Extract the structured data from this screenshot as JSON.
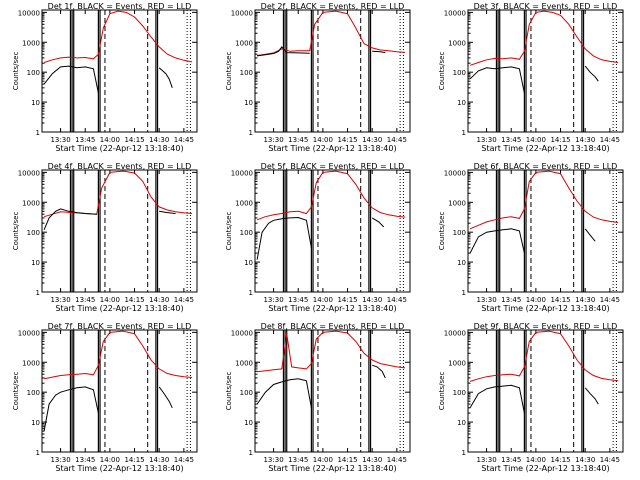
{
  "colors": {
    "events": "#000000",
    "lld": "#e00000",
    "axis": "#000000"
  },
  "chart_data": {
    "type": "line",
    "scale": "log",
    "ylabel": "Counts/sec",
    "xlabel": "Start Time (22-Apr-12 13:18:40)",
    "y_ticks": [
      "1",
      "10",
      "100",
      "1000",
      "10000"
    ],
    "x_ticks": [
      "13:30",
      "13:45",
      "14:00",
      "14:15",
      "14:30",
      "14:45"
    ],
    "x_tick_minutes": [
      30,
      45,
      60,
      75,
      90,
      105
    ],
    "xlim_minutes": [
      18.7,
      113
    ],
    "ylim": [
      1,
      12000
    ],
    "solid_markers_minutes": [
      36,
      37,
      38,
      53,
      54,
      88,
      89
    ],
    "dashed_markers_minutes": [
      57,
      83
    ],
    "dotted_markers_minutes": [
      107,
      109
    ],
    "panels": [
      {
        "title": "Det 1f, BLACK = Events, RED = LLD",
        "events": [
          [
            20,
            40
          ],
          [
            25,
            90
          ],
          [
            30,
            150
          ],
          [
            35,
            160
          ],
          [
            40,
            140
          ],
          [
            45,
            150
          ],
          [
            50,
            130
          ],
          [
            53,
            20
          ],
          [
            56,
            0
          ],
          [
            88,
            0
          ],
          [
            90,
            140
          ],
          [
            94,
            90
          ],
          [
            96,
            60
          ],
          [
            98,
            30
          ]
        ],
        "lld": [
          [
            20,
            210
          ],
          [
            25,
            260
          ],
          [
            30,
            300
          ],
          [
            35,
            320
          ],
          [
            40,
            300
          ],
          [
            45,
            310
          ],
          [
            50,
            280
          ],
          [
            53,
            400
          ],
          [
            56,
            3000
          ],
          [
            60,
            9000
          ],
          [
            65,
            11000
          ],
          [
            70,
            10000
          ],
          [
            75,
            7000
          ],
          [
            80,
            3500
          ],
          [
            85,
            1500
          ],
          [
            90,
            700
          ],
          [
            95,
            400
          ],
          [
            100,
            300
          ],
          [
            105,
            250
          ],
          [
            110,
            220
          ]
        ]
      },
      {
        "title": "Det 2f, BLACK = Events, RED = LLD",
        "events": [
          [
            20,
            350
          ],
          [
            25,
            380
          ],
          [
            30,
            420
          ],
          [
            33,
            500
          ],
          [
            35,
            700
          ],
          [
            38,
            450
          ],
          [
            45,
            440
          ],
          [
            52,
            430
          ],
          [
            54,
            0
          ],
          [
            88,
            0
          ],
          [
            90,
            500
          ],
          [
            95,
            480
          ],
          [
            98,
            450
          ]
        ],
        "lld": [
          [
            20,
            360
          ],
          [
            25,
            400
          ],
          [
            30,
            440
          ],
          [
            35,
            600
          ],
          [
            40,
            500
          ],
          [
            45,
            520
          ],
          [
            52,
            520
          ],
          [
            55,
            4000
          ],
          [
            60,
            10000
          ],
          [
            68,
            11000
          ],
          [
            75,
            9000
          ],
          [
            80,
            3000
          ],
          [
            85,
            900
          ],
          [
            90,
            650
          ],
          [
            95,
            550
          ],
          [
            100,
            520
          ],
          [
            105,
            480
          ],
          [
            110,
            460
          ]
        ]
      },
      {
        "title": "Det 3f, BLACK = Events, RED = LLD",
        "events": [
          [
            20,
            60
          ],
          [
            25,
            110
          ],
          [
            30,
            140
          ],
          [
            35,
            130
          ],
          [
            40,
            140
          ],
          [
            45,
            150
          ],
          [
            50,
            130
          ],
          [
            53,
            20
          ],
          [
            56,
            0
          ],
          [
            88,
            0
          ],
          [
            90,
            160
          ],
          [
            93,
            100
          ],
          [
            96,
            70
          ],
          [
            98,
            50
          ]
        ],
        "lld": [
          [
            20,
            170
          ],
          [
            25,
            210
          ],
          [
            30,
            260
          ],
          [
            35,
            290
          ],
          [
            40,
            280
          ],
          [
            45,
            300
          ],
          [
            50,
            270
          ],
          [
            53,
            500
          ],
          [
            56,
            4000
          ],
          [
            60,
            10000
          ],
          [
            65,
            11000
          ],
          [
            70,
            10000
          ],
          [
            75,
            8000
          ],
          [
            80,
            4000
          ],
          [
            85,
            1500
          ],
          [
            90,
            600
          ],
          [
            95,
            350
          ],
          [
            100,
            260
          ],
          [
            105,
            230
          ],
          [
            110,
            210
          ]
        ]
      },
      {
        "title": "Det 4f, BLACK = Events, RED = LLD",
        "events": [
          [
            20,
            120
          ],
          [
            23,
            300
          ],
          [
            27,
            500
          ],
          [
            30,
            600
          ],
          [
            35,
            500
          ],
          [
            40,
            450
          ],
          [
            45,
            420
          ],
          [
            52,
            400
          ],
          [
            54,
            0
          ],
          [
            88,
            0
          ],
          [
            90,
            500
          ],
          [
            95,
            450
          ],
          [
            100,
            420
          ]
        ],
        "lld": [
          [
            20,
            330
          ],
          [
            25,
            400
          ],
          [
            30,
            480
          ],
          [
            35,
            460
          ],
          [
            40,
            440
          ],
          [
            45,
            420
          ],
          [
            52,
            400
          ],
          [
            55,
            3000
          ],
          [
            60,
            10000
          ],
          [
            68,
            11000
          ],
          [
            75,
            9500
          ],
          [
            80,
            5000
          ],
          [
            85,
            1500
          ],
          [
            90,
            700
          ],
          [
            95,
            550
          ],
          [
            100,
            480
          ],
          [
            105,
            440
          ],
          [
            110,
            420
          ]
        ]
      },
      {
        "title": "Det 5f, BLACK = Events, RED = LLD",
        "events": [
          [
            20,
            12
          ],
          [
            23,
            100
          ],
          [
            27,
            200
          ],
          [
            30,
            250
          ],
          [
            35,
            280
          ],
          [
            40,
            300
          ],
          [
            45,
            310
          ],
          [
            50,
            250
          ],
          [
            53,
            30
          ],
          [
            56,
            0
          ],
          [
            88,
            0
          ],
          [
            90,
            300
          ],
          [
            94,
            220
          ],
          [
            97,
            150
          ]
        ],
        "lld": [
          [
            20,
            260
          ],
          [
            25,
            330
          ],
          [
            30,
            380
          ],
          [
            35,
            420
          ],
          [
            40,
            480
          ],
          [
            45,
            500
          ],
          [
            50,
            420
          ],
          [
            53,
            700
          ],
          [
            56,
            4500
          ],
          [
            60,
            10000
          ],
          [
            68,
            11000
          ],
          [
            75,
            9000
          ],
          [
            80,
            4000
          ],
          [
            85,
            1400
          ],
          [
            90,
            650
          ],
          [
            95,
            450
          ],
          [
            100,
            380
          ],
          [
            105,
            340
          ],
          [
            110,
            320
          ]
        ]
      },
      {
        "title": "Det 6f, BLACK = Events, RED = LLD",
        "events": [
          [
            20,
            20
          ],
          [
            25,
            70
          ],
          [
            30,
            100
          ],
          [
            35,
            110
          ],
          [
            40,
            120
          ],
          [
            45,
            130
          ],
          [
            50,
            110
          ],
          [
            53,
            20
          ],
          [
            56,
            0
          ],
          [
            88,
            0
          ],
          [
            90,
            130
          ],
          [
            93,
            80
          ],
          [
            96,
            50
          ]
        ],
        "lld": [
          [
            20,
            130
          ],
          [
            25,
            170
          ],
          [
            30,
            220
          ],
          [
            35,
            260
          ],
          [
            40,
            300
          ],
          [
            45,
            330
          ],
          [
            50,
            290
          ],
          [
            53,
            600
          ],
          [
            56,
            5000
          ],
          [
            60,
            10000
          ],
          [
            68,
            11000
          ],
          [
            75,
            9000
          ],
          [
            80,
            3000
          ],
          [
            85,
            1100
          ],
          [
            90,
            500
          ],
          [
            95,
            320
          ],
          [
            100,
            260
          ],
          [
            105,
            230
          ],
          [
            110,
            210
          ]
        ]
      },
      {
        "title": "Det 7f, BLACK = Events, RED = LLD",
        "events": [
          [
            20,
            5
          ],
          [
            23,
            40
          ],
          [
            27,
            80
          ],
          [
            30,
            100
          ],
          [
            35,
            120
          ],
          [
            40,
            140
          ],
          [
            45,
            150
          ],
          [
            50,
            120
          ],
          [
            53,
            20
          ],
          [
            56,
            0
          ],
          [
            88,
            0
          ],
          [
            90,
            150
          ],
          [
            93,
            90
          ],
          [
            96,
            50
          ],
          [
            98,
            30
          ]
        ],
        "lld": [
          [
            20,
            280
          ],
          [
            25,
            320
          ],
          [
            30,
            360
          ],
          [
            35,
            380
          ],
          [
            40,
            400
          ],
          [
            45,
            420
          ],
          [
            50,
            380
          ],
          [
            53,
            800
          ],
          [
            56,
            5000
          ],
          [
            60,
            10000
          ],
          [
            68,
            11000
          ],
          [
            75,
            9000
          ],
          [
            80,
            3500
          ],
          [
            85,
            1200
          ],
          [
            90,
            600
          ],
          [
            95,
            420
          ],
          [
            100,
            360
          ],
          [
            105,
            330
          ],
          [
            110,
            310
          ]
        ]
      },
      {
        "title": "Det 8f, BLACK = Events, RED = LLD",
        "events": [
          [
            20,
            40
          ],
          [
            25,
            100
          ],
          [
            30,
            180
          ],
          [
            35,
            220
          ],
          [
            40,
            260
          ],
          [
            45,
            280
          ],
          [
            50,
            240
          ],
          [
            53,
            30
          ],
          [
            56,
            0
          ],
          [
            88,
            0
          ],
          [
            90,
            800
          ],
          [
            93,
            700
          ],
          [
            96,
            500
          ],
          [
            98,
            300
          ]
        ],
        "lld": [
          [
            20,
            480
          ],
          [
            25,
            520
          ],
          [
            30,
            560
          ],
          [
            35,
            600
          ],
          [
            38,
            9000
          ],
          [
            41,
            700
          ],
          [
            45,
            650
          ],
          [
            50,
            600
          ],
          [
            53,
            900
          ],
          [
            56,
            6000
          ],
          [
            60,
            10000
          ],
          [
            68,
            11000
          ],
          [
            75,
            9500
          ],
          [
            80,
            5000
          ],
          [
            85,
            2000
          ],
          [
            90,
            1200
          ],
          [
            95,
            900
          ],
          [
            100,
            800
          ],
          [
            105,
            700
          ],
          [
            110,
            650
          ]
        ]
      },
      {
        "title": "Det 9f, BLACK = Events, RED = LLD",
        "events": [
          [
            20,
            30
          ],
          [
            25,
            90
          ],
          [
            30,
            130
          ],
          [
            35,
            150
          ],
          [
            40,
            160
          ],
          [
            45,
            170
          ],
          [
            50,
            140
          ],
          [
            53,
            20
          ],
          [
            56,
            0
          ],
          [
            88,
            0
          ],
          [
            90,
            140
          ],
          [
            93,
            90
          ],
          [
            96,
            60
          ],
          [
            98,
            40
          ]
        ],
        "lld": [
          [
            20,
            230
          ],
          [
            25,
            280
          ],
          [
            30,
            330
          ],
          [
            35,
            360
          ],
          [
            40,
            380
          ],
          [
            45,
            400
          ],
          [
            50,
            350
          ],
          [
            53,
            700
          ],
          [
            56,
            5000
          ],
          [
            60,
            10000
          ],
          [
            68,
            11000
          ],
          [
            75,
            9000
          ],
          [
            80,
            3500
          ],
          [
            85,
            1200
          ],
          [
            90,
            550
          ],
          [
            95,
            360
          ],
          [
            100,
            290
          ],
          [
            105,
            260
          ],
          [
            110,
            240
          ]
        ]
      }
    ]
  }
}
